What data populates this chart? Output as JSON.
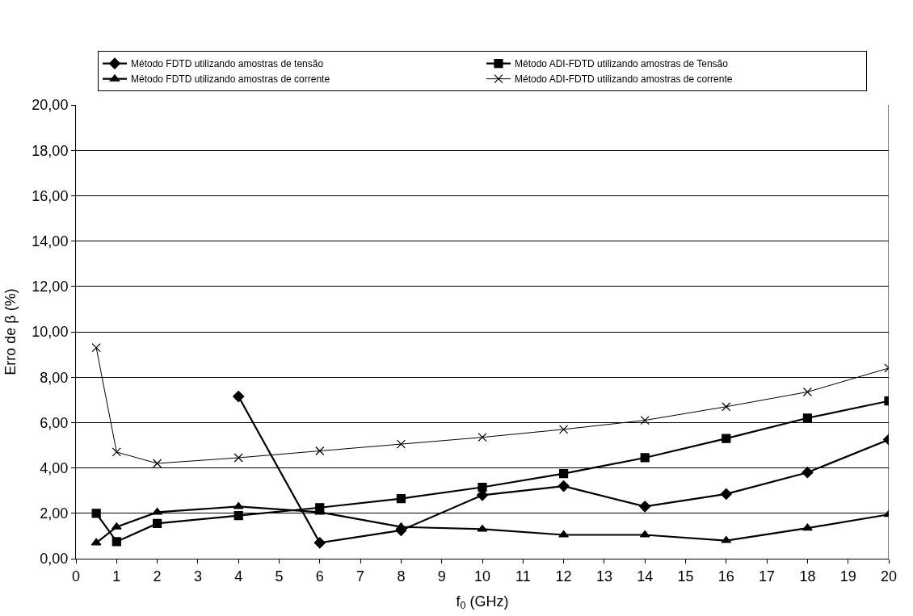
{
  "chart_data": {
    "type": "line",
    "xlabel": "f$_{0}$ (GHz)",
    "ylabel": "Erro de β (%)",
    "x": [
      0.5,
      1,
      2,
      4,
      6,
      8,
      10,
      12,
      14,
      16,
      18,
      20
    ],
    "xlim": [
      0,
      20
    ],
    "xticks": [
      0,
      1,
      2,
      3,
      4,
      5,
      6,
      7,
      8,
      9,
      10,
      11,
      12,
      13,
      14,
      15,
      16,
      17,
      18,
      19,
      20
    ],
    "ylim": [
      0,
      20
    ],
    "yticks": [
      {
        "value": 0,
        "label": "0,00"
      },
      {
        "value": 2,
        "label": "2,00"
      },
      {
        "value": 4,
        "label": "4,00"
      },
      {
        "value": 6,
        "label": "6,00"
      },
      {
        "value": 8,
        "label": "8,00"
      },
      {
        "value": 10,
        "label": "10,00"
      },
      {
        "value": 12,
        "label": "12,00"
      },
      {
        "value": 14,
        "label": "14,00"
      },
      {
        "value": 16,
        "label": "16,00"
      },
      {
        "value": 18,
        "label": "18,00"
      },
      {
        "value": 20,
        "label": "20,00"
      }
    ],
    "grid": "y",
    "legend": "top",
    "series": [
      {
        "name": "Método FDTD utilizando amostras de tensão",
        "color": "#000000",
        "marker": "diamond",
        "values": [
          null,
          null,
          null,
          7.15,
          0.7,
          1.25,
          2.8,
          3.2,
          2.3,
          2.85,
          3.8,
          5.25
        ]
      },
      {
        "name": "Método ADI-FDTD utilizando amostras de Tensão",
        "color": "#000000",
        "marker": "square",
        "values": [
          2.0,
          0.75,
          1.55,
          1.9,
          2.25,
          2.65,
          3.15,
          3.75,
          4.45,
          5.3,
          6.2,
          6.95
        ]
      },
      {
        "name": "Método FDTD utilizando amostras de corrente",
        "color": "#000000",
        "marker": "triangle",
        "values": [
          0.7,
          1.4,
          2.05,
          2.3,
          2.05,
          1.4,
          1.3,
          1.05,
          1.05,
          0.8,
          1.35,
          1.95
        ]
      },
      {
        "name": "Método ADI-FDTD utilizando amostras de corrente",
        "color": "#000000",
        "marker": "cross",
        "values": [
          9.3,
          4.7,
          4.2,
          4.45,
          4.75,
          5.05,
          5.35,
          5.7,
          6.1,
          6.7,
          7.35,
          8.4
        ]
      }
    ]
  }
}
